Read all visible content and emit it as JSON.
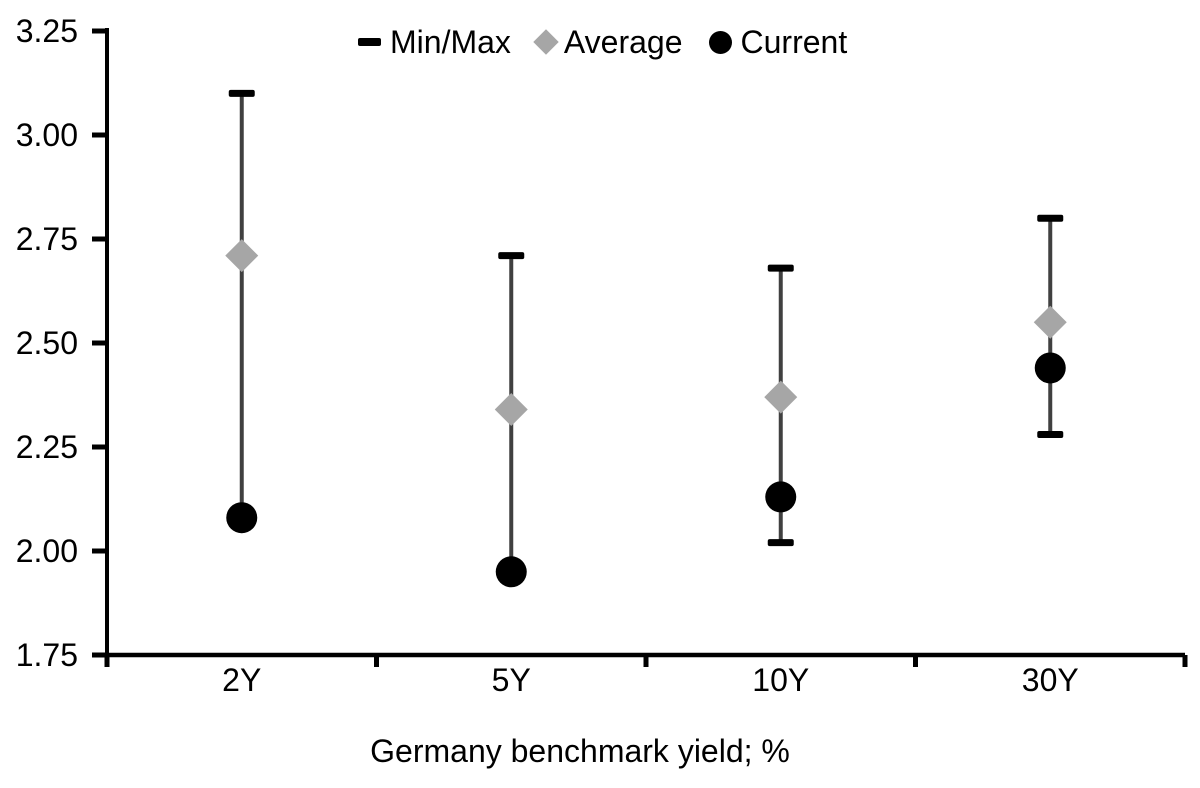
{
  "chart_data": {
    "type": "scatter",
    "title": "",
    "xlabel": "Germany benchmark yield; %",
    "ylabel": "",
    "categories": [
      "2Y",
      "5Y",
      "10Y",
      "30Y"
    ],
    "ylim": [
      1.75,
      3.25
    ],
    "ytick_step": 0.25,
    "ytick_labels": [
      "1.75",
      "2.00",
      "2.25",
      "2.50",
      "2.75",
      "3.00",
      "3.25"
    ],
    "grid": false,
    "legend_position": "top-center",
    "series": [
      {
        "name": "Min/Max",
        "marker": "range-bar",
        "min": [
          2.08,
          1.95,
          2.02,
          2.28
        ],
        "max": [
          3.1,
          2.71,
          2.68,
          2.8
        ]
      },
      {
        "name": "Average",
        "marker": "diamond",
        "values": [
          2.71,
          2.34,
          2.37,
          2.55
        ]
      },
      {
        "name": "Current",
        "marker": "circle",
        "values": [
          2.08,
          1.95,
          2.13,
          2.44
        ]
      }
    ],
    "colors": {
      "axis": "#000000",
      "range_line": "#404040",
      "cap": "#000000",
      "average": "#a6a6a6",
      "current": "#000000",
      "text": "#000000"
    }
  }
}
